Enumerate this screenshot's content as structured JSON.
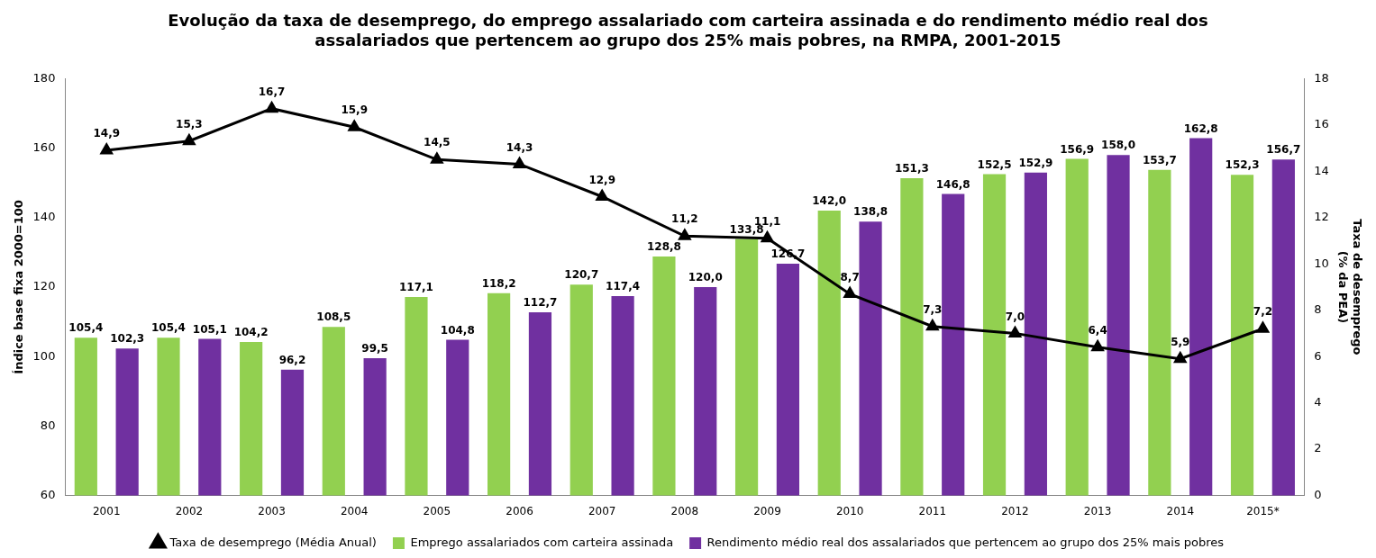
{
  "chart_data": {
    "type": "bar",
    "title": [
      "Evolução da taxa de desemprego, do emprego assalariado com carteira assinada e do rendimento médio real dos",
      "assalariados que pertencem ao grupo dos 25% mais pobres, na RMPA, 2001-2015"
    ],
    "y_label": "Índice base fixa 2000=100",
    "y2_label": [
      "Taxa de desemprego",
      "(% da PEA)"
    ],
    "categories": [
      "2001",
      "2002",
      "2003",
      "2004",
      "2005",
      "2006",
      "2007",
      "2008",
      "2009",
      "2010",
      "2011",
      "2012",
      "2013",
      "2014",
      "2015*"
    ],
    "ylim": [
      60,
      180
    ],
    "yticks": [
      60,
      80,
      100,
      120,
      140,
      160,
      180
    ],
    "y2lim": [
      0,
      18
    ],
    "y2ticks": [
      0,
      2,
      4,
      6,
      8,
      10,
      12,
      14,
      16,
      18
    ],
    "grid": false,
    "legend": "bottom",
    "data_labels": true,
    "series": [
      {
        "name": "Emprego assalariados com carteira assinada",
        "type": "bar",
        "color": "#92d050",
        "values": [
          105.4,
          105.4,
          104.2,
          108.5,
          117.1,
          118.2,
          120.7,
          128.8,
          133.8,
          142.0,
          151.3,
          152.5,
          156.9,
          153.7,
          152.3
        ],
        "value_labels": [
          "105,4",
          "105,4",
          "104,2",
          "108,5",
          "117,1",
          "118,2",
          "120,7",
          "128,8",
          "133,8",
          "142,0",
          "151,3",
          "152,5",
          "156,9",
          "153,7",
          "152,3"
        ]
      },
      {
        "name": "Rendimento médio real dos assalariados que pertencem ao grupo dos 25% mais pobres",
        "type": "bar",
        "color": "#7030a0",
        "values": [
          102.3,
          105.1,
          96.2,
          99.5,
          104.8,
          112.7,
          117.4,
          120.0,
          126.7,
          138.8,
          146.8,
          152.9,
          158.0,
          162.8,
          156.7
        ],
        "value_labels": [
          "102,3",
          "105,1",
          "96,2",
          "99,5",
          "104,8",
          "112,7",
          "117,4",
          "120,0",
          "126,7",
          "138,8",
          "146,8",
          "152,9",
          "158,0",
          "162,8",
          "156,7"
        ]
      },
      {
        "name": "Taxa de desemprego (Média Anual)",
        "type": "line",
        "color": "#000000",
        "marker": "triangle",
        "line_style": "solid",
        "axis": "y2",
        "values": [
          14.9,
          15.3,
          16.7,
          15.9,
          14.5,
          14.3,
          12.9,
          11.2,
          11.1,
          8.7,
          7.3,
          7.0,
          6.4,
          5.9,
          7.2
        ],
        "value_labels": [
          "14,9",
          "15,3",
          "16,7",
          "15,9",
          "14,5",
          "14,3",
          "12,9",
          "11,2",
          "11,1",
          "8,7",
          "7,3",
          "7,0",
          "6,4",
          "5,9",
          "7,2"
        ]
      }
    ]
  }
}
